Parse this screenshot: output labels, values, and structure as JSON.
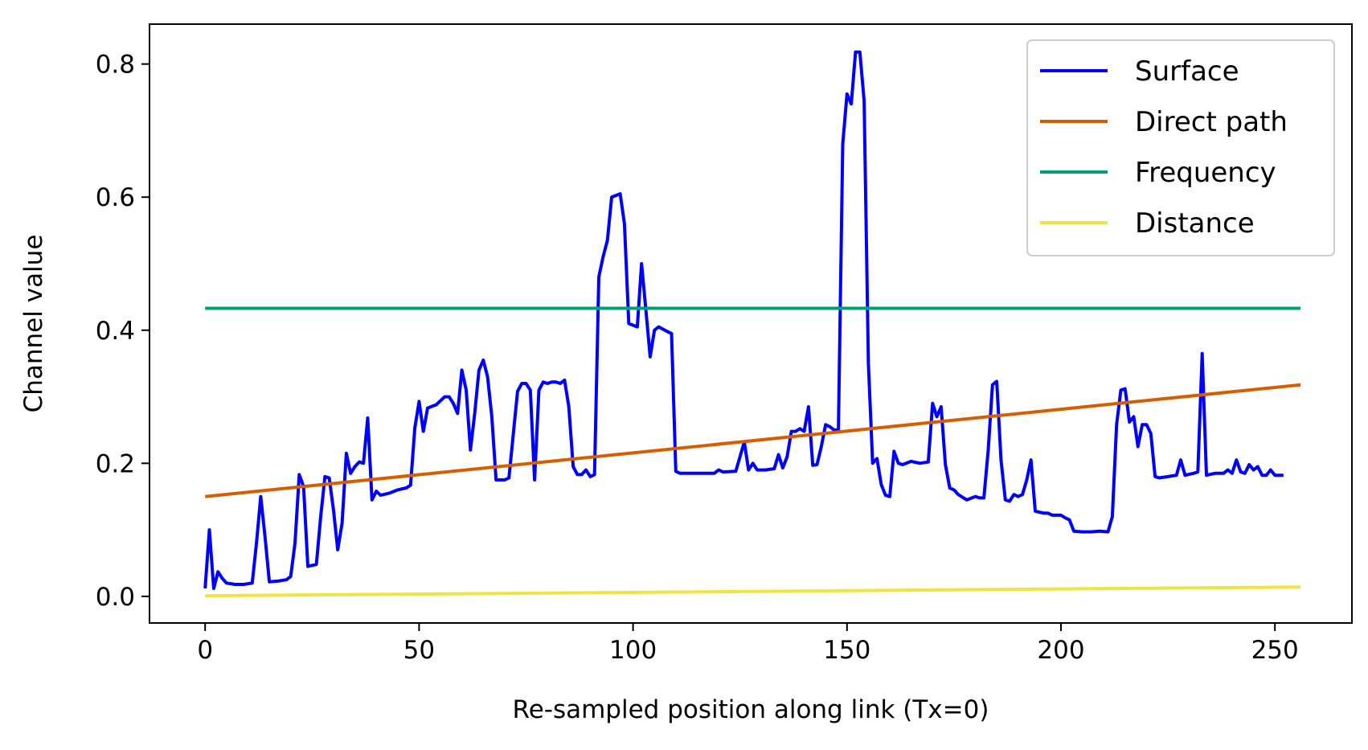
{
  "chart_data": {
    "type": "line",
    "xlabel": "Re-sampled position along link (Tx=0)",
    "ylabel": "Channel value",
    "xlim": [
      -13,
      268
    ],
    "ylim": [
      -0.04,
      0.86
    ],
    "xticks": [
      0,
      50,
      100,
      150,
      200,
      250
    ],
    "yticks": [
      0.0,
      0.2,
      0.4,
      0.6,
      0.8
    ],
    "xtick_labels": [
      "0",
      "50",
      "100",
      "150",
      "200",
      "250"
    ],
    "ytick_labels": [
      "0.0",
      "0.2",
      "0.4",
      "0.6",
      "0.8"
    ],
    "grid": false,
    "legend_position": "top-right",
    "series": [
      {
        "name": "Surface",
        "color": "#0000ff",
        "points": [
          [
            0,
            0.012
          ],
          [
            1,
            0.1
          ],
          [
            2,
            0.012
          ],
          [
            3,
            0.037
          ],
          [
            4,
            0.027
          ],
          [
            5,
            0.02
          ],
          [
            7,
            0.018
          ],
          [
            9,
            0.018
          ],
          [
            11,
            0.02
          ],
          [
            12,
            0.08
          ],
          [
            13,
            0.15
          ],
          [
            14,
            0.09
          ],
          [
            15,
            0.022
          ],
          [
            17,
            0.023
          ],
          [
            19,
            0.025
          ],
          [
            20,
            0.03
          ],
          [
            21,
            0.08
          ],
          [
            22,
            0.183
          ],
          [
            23,
            0.165
          ],
          [
            24,
            0.045
          ],
          [
            26,
            0.048
          ],
          [
            27,
            0.12
          ],
          [
            28,
            0.18
          ],
          [
            29,
            0.178
          ],
          [
            30,
            0.13
          ],
          [
            31,
            0.07
          ],
          [
            32,
            0.11
          ],
          [
            33,
            0.215
          ],
          [
            34,
            0.185
          ],
          [
            35,
            0.195
          ],
          [
            36,
            0.202
          ],
          [
            37,
            0.2
          ],
          [
            38,
            0.268
          ],
          [
            39,
            0.145
          ],
          [
            40,
            0.158
          ],
          [
            41,
            0.152
          ],
          [
            43,
            0.155
          ],
          [
            45,
            0.16
          ],
          [
            47,
            0.163
          ],
          [
            48,
            0.167
          ],
          [
            49,
            0.253
          ],
          [
            50,
            0.293
          ],
          [
            51,
            0.248
          ],
          [
            52,
            0.283
          ],
          [
            54,
            0.288
          ],
          [
            56,
            0.3
          ],
          [
            57,
            0.3
          ],
          [
            58,
            0.29
          ],
          [
            59,
            0.275
          ],
          [
            60,
            0.34
          ],
          [
            61,
            0.31
          ],
          [
            62,
            0.22
          ],
          [
            63,
            0.275
          ],
          [
            64,
            0.34
          ],
          [
            65,
            0.355
          ],
          [
            66,
            0.33
          ],
          [
            67,
            0.27
          ],
          [
            68,
            0.175
          ],
          [
            70,
            0.175
          ],
          [
            71,
            0.178
          ],
          [
            73,
            0.308
          ],
          [
            74,
            0.32
          ],
          [
            75,
            0.32
          ],
          [
            76,
            0.31
          ],
          [
            77,
            0.175
          ],
          [
            78,
            0.31
          ],
          [
            79,
            0.322
          ],
          [
            80,
            0.32
          ],
          [
            81,
            0.322
          ],
          [
            82,
            0.322
          ],
          [
            83,
            0.32
          ],
          [
            84,
            0.325
          ],
          [
            85,
            0.285
          ],
          [
            86,
            0.195
          ],
          [
            87,
            0.183
          ],
          [
            88,
            0.183
          ],
          [
            89,
            0.19
          ],
          [
            90,
            0.18
          ],
          [
            91,
            0.183
          ],
          [
            92,
            0.48
          ],
          [
            93,
            0.51
          ],
          [
            94,
            0.535
          ],
          [
            95,
            0.6
          ],
          [
            97,
            0.605
          ],
          [
            98,
            0.56
          ],
          [
            99,
            0.41
          ],
          [
            101,
            0.405
          ],
          [
            102,
            0.5
          ],
          [
            103,
            0.43
          ],
          [
            104,
            0.36
          ],
          [
            105,
            0.4
          ],
          [
            106,
            0.405
          ],
          [
            108,
            0.398
          ],
          [
            109,
            0.395
          ],
          [
            110,
            0.188
          ],
          [
            111,
            0.185
          ],
          [
            114,
            0.185
          ],
          [
            116,
            0.185
          ],
          [
            119,
            0.185
          ],
          [
            120,
            0.19
          ],
          [
            121,
            0.187
          ],
          [
            124,
            0.188
          ],
          [
            125,
            0.21
          ],
          [
            126,
            0.232
          ],
          [
            127,
            0.19
          ],
          [
            128,
            0.2
          ],
          [
            129,
            0.19
          ],
          [
            131,
            0.19
          ],
          [
            133,
            0.192
          ],
          [
            134,
            0.213
          ],
          [
            135,
            0.193
          ],
          [
            136,
            0.21
          ],
          [
            137,
            0.248
          ],
          [
            138,
            0.248
          ],
          [
            139,
            0.252
          ],
          [
            140,
            0.248
          ],
          [
            141,
            0.285
          ],
          [
            142,
            0.197
          ],
          [
            143,
            0.198
          ],
          [
            144,
            0.225
          ],
          [
            145,
            0.258
          ],
          [
            146,
            0.255
          ],
          [
            147,
            0.25
          ],
          [
            148,
            0.25
          ],
          [
            149,
            0.68
          ],
          [
            150,
            0.755
          ],
          [
            151,
            0.74
          ],
          [
            152,
            0.818
          ],
          [
            153,
            0.818
          ],
          [
            154,
            0.745
          ],
          [
            155,
            0.35
          ],
          [
            156,
            0.2
          ],
          [
            157,
            0.207
          ],
          [
            158,
            0.168
          ],
          [
            159,
            0.152
          ],
          [
            160,
            0.15
          ],
          [
            161,
            0.218
          ],
          [
            162,
            0.2
          ],
          [
            163,
            0.198
          ],
          [
            165,
            0.203
          ],
          [
            167,
            0.2
          ],
          [
            169,
            0.202
          ],
          [
            170,
            0.29
          ],
          [
            171,
            0.27
          ],
          [
            172,
            0.285
          ],
          [
            173,
            0.198
          ],
          [
            174,
            0.163
          ],
          [
            175,
            0.16
          ],
          [
            176,
            0.153
          ],
          [
            178,
            0.145
          ],
          [
            180,
            0.15
          ],
          [
            181,
            0.148
          ],
          [
            182,
            0.148
          ],
          [
            183,
            0.22
          ],
          [
            184,
            0.318
          ],
          [
            185,
            0.323
          ],
          [
            186,
            0.205
          ],
          [
            187,
            0.145
          ],
          [
            188,
            0.143
          ],
          [
            189,
            0.153
          ],
          [
            190,
            0.15
          ],
          [
            191,
            0.153
          ],
          [
            192,
            0.175
          ],
          [
            193,
            0.205
          ],
          [
            194,
            0.128
          ],
          [
            196,
            0.125
          ],
          [
            197,
            0.125
          ],
          [
            198,
            0.122
          ],
          [
            200,
            0.122
          ],
          [
            201,
            0.118
          ],
          [
            202,
            0.115
          ],
          [
            203,
            0.098
          ],
          [
            205,
            0.097
          ],
          [
            207,
            0.097
          ],
          [
            209,
            0.098
          ],
          [
            211,
            0.097
          ],
          [
            212,
            0.12
          ],
          [
            213,
            0.258
          ],
          [
            214,
            0.31
          ],
          [
            215,
            0.312
          ],
          [
            216,
            0.262
          ],
          [
            217,
            0.27
          ],
          [
            218,
            0.225
          ],
          [
            219,
            0.258
          ],
          [
            220,
            0.258
          ],
          [
            221,
            0.245
          ],
          [
            222,
            0.18
          ],
          [
            223,
            0.178
          ],
          [
            225,
            0.18
          ],
          [
            227,
            0.182
          ],
          [
            228,
            0.205
          ],
          [
            229,
            0.182
          ],
          [
            231,
            0.185
          ],
          [
            232,
            0.187
          ],
          [
            233,
            0.365
          ],
          [
            234,
            0.182
          ],
          [
            236,
            0.185
          ],
          [
            238,
            0.185
          ],
          [
            239,
            0.19
          ],
          [
            240,
            0.185
          ],
          [
            241,
            0.205
          ],
          [
            242,
            0.187
          ],
          [
            243,
            0.185
          ],
          [
            244,
            0.198
          ],
          [
            245,
            0.19
          ],
          [
            246,
            0.195
          ],
          [
            247,
            0.182
          ],
          [
            248,
            0.182
          ],
          [
            249,
            0.19
          ],
          [
            250,
            0.182
          ],
          [
            252,
            0.182
          ]
        ]
      },
      {
        "name": "Direct path",
        "color": "#d55e00",
        "points": [
          [
            0,
            0.15
          ],
          [
            256,
            0.318
          ]
        ]
      },
      {
        "name": "Frequency",
        "color": "#009e73",
        "points": [
          [
            0,
            0.433
          ],
          [
            256,
            0.433
          ]
        ]
      },
      {
        "name": "Distance",
        "color": "#f0e442",
        "points": [
          [
            0,
            0.001
          ],
          [
            256,
            0.014
          ]
        ]
      }
    ]
  }
}
